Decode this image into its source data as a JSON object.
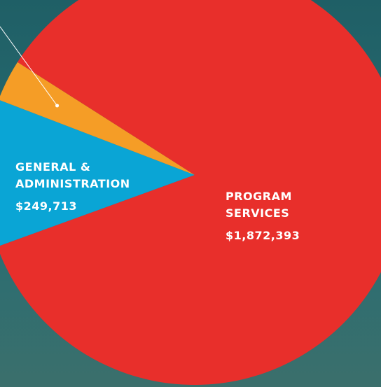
{
  "chart_data": {
    "type": "pie",
    "categories": [
      [
        "GENERAL &",
        "ADMINISTRATION"
      ],
      null,
      [
        "PROGRAM",
        "SERVICES"
      ]
    ],
    "values": [
      249713,
      70000,
      1872393
    ],
    "value_labels": [
      "$249,713",
      null,
      "$1,872,393"
    ],
    "colors": [
      "#0aa5d5",
      "#f59d26",
      "#e82f2b"
    ]
  }
}
